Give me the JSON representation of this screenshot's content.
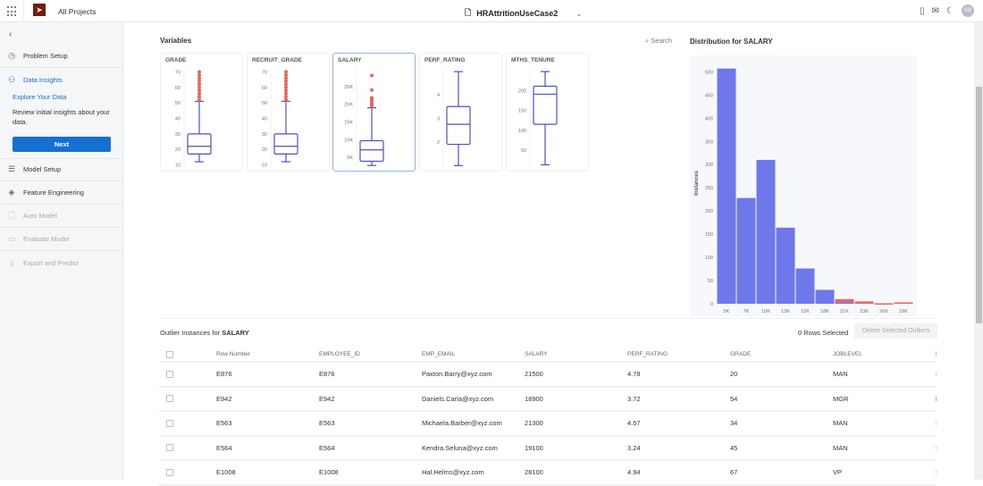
{
  "topbar": {
    "all_projects": "All Projects",
    "project_title": "HRAttritionUseCase2",
    "avatar": "SB"
  },
  "sidebar": {
    "items": [
      {
        "label": "Problem Setup",
        "icon": "clock-icon"
      },
      {
        "label": "Data Insights",
        "icon": "insights-icon"
      },
      {
        "label": "Model Setup",
        "icon": "sliders-icon"
      },
      {
        "label": "Feature Engineering",
        "icon": "layers-icon"
      },
      {
        "label": "Auto Model",
        "icon": "file-icon"
      },
      {
        "label": "Evaluate Model",
        "icon": "monitor-icon"
      },
      {
        "label": "Export and Predict",
        "icon": "download-icon"
      }
    ],
    "sub_title": "Explore Your Data",
    "sub_desc": "Review initial insights about your data.",
    "next": "Next"
  },
  "variables": {
    "title": "Variables",
    "search": "Search"
  },
  "colors": {
    "box": "#4a4fd0",
    "outlier": "#e8675a",
    "bar": "#6f78ea",
    "accent": "#1670d2"
  },
  "chart_data": [
    {
      "type": "box",
      "name": "GRADE",
      "ylim": [
        8,
        72
      ],
      "ticks": [
        10,
        20,
        30,
        40,
        50,
        60,
        70
      ],
      "tick_labels": [
        "10",
        "20",
        "30",
        "40",
        "50",
        "60",
        "70"
      ],
      "whisker_low": 12,
      "q1": 17,
      "median": 22,
      "q3": 30,
      "whisker_high": 51,
      "outliers": [
        52,
        54,
        56,
        58,
        60,
        62,
        64,
        66,
        68,
        70
      ]
    },
    {
      "type": "box",
      "name": "RECRUIT_GRADE",
      "ylim": [
        8,
        72
      ],
      "ticks": [
        10,
        20,
        30,
        40,
        50,
        60,
        70
      ],
      "tick_labels": [
        "10",
        "20",
        "30",
        "40",
        "50",
        "60",
        "70"
      ],
      "whisker_low": 12,
      "q1": 17,
      "median": 22,
      "q3": 30,
      "whisker_high": 51,
      "outliers": [
        52,
        54,
        56,
        58,
        60,
        62,
        64,
        66,
        68,
        70
      ]
    },
    {
      "type": "box",
      "name": "SALARY",
      "ylim": [
        2000,
        30000
      ],
      "ticks": [
        5000,
        10000,
        15000,
        20000,
        25000
      ],
      "tick_labels": [
        "5K",
        "10K",
        "15K",
        "20K",
        "25K"
      ],
      "whisker_low": 2700,
      "q1": 3900,
      "median": 7100,
      "q3": 9700,
      "whisker_high": 19000,
      "outliers": [
        19500,
        20000,
        20500,
        21000,
        21500,
        21800,
        24000,
        28100
      ]
    },
    {
      "type": "box",
      "name": "PERF_RATING",
      "ylim": [
        0.9,
        5.1
      ],
      "ticks": [
        2,
        3,
        4
      ],
      "tick_labels": [
        "2",
        "3",
        "4"
      ],
      "whisker_low": 1.0,
      "q1": 1.9,
      "median": 2.75,
      "q3": 3.5,
      "whisker_high": 4.98,
      "outliers": []
    },
    {
      "type": "box",
      "name": "MTHS_TENURE",
      "ylim": [
        5,
        255
      ],
      "ticks": [
        50,
        100,
        150,
        200
      ],
      "tick_labels": [
        "50",
        "100",
        "150",
        "200"
      ],
      "whisker_low": 13,
      "q1": 115,
      "median": 191,
      "q3": 211,
      "whisker_high": 248,
      "outliers": []
    },
    {
      "type": "bar",
      "title": "Distribution for SALARY",
      "ylabel": "Instances",
      "xlabel": "",
      "categories": [
        "5K",
        "7K",
        "10K",
        "13K",
        "15K",
        "18K",
        "21K",
        "23K",
        "26K",
        "29K"
      ],
      "series": [
        {
          "name": "normal",
          "values": [
            507,
            228,
            310,
            164,
            76,
            30,
            3,
            0,
            0,
            0
          ]
        },
        {
          "name": "outlier",
          "values": [
            0,
            0,
            0,
            0,
            0,
            0,
            7,
            5,
            1,
            3
          ]
        }
      ],
      "ylim": [
        0,
        520
      ],
      "yticks": [
        0,
        50,
        100,
        150,
        200,
        250,
        300,
        350,
        400,
        450,
        500
      ],
      "ytick_labels": [
        "0",
        "50",
        "100",
        "150",
        "200",
        "250",
        "300",
        "350",
        "400",
        "450",
        "500"
      ]
    }
  ],
  "outliers": {
    "title_prefix": "Outlier Instances for",
    "variable": "SALARY",
    "rows_selected": "0 Rows Selected",
    "delete_label": "Delete Selected Outliers",
    "columns": [
      "Row Number",
      "EMPLOYEE_ID",
      "EMP_EMAIL",
      "SALARY",
      "PERF_RATING",
      "GRADE",
      "JOBLEVEL",
      "D"
    ],
    "rows": [
      [
        "E876",
        "E876",
        "Paxton.Barry@xyz.com",
        "21500",
        "4.78",
        "20",
        "MAN",
        "S"
      ],
      [
        "E942",
        "E942",
        "Daniels.Carla@xyz.com",
        "18900",
        "3.72",
        "54",
        "MGR",
        "F"
      ],
      [
        "E563",
        "E563",
        "Michaela.Barber@xyz.com",
        "21300",
        "4.57",
        "34",
        "MAN",
        "S"
      ],
      [
        "E564",
        "E564",
        "Kendra.Seluna@xyz.com",
        "19100",
        "3.24",
        "45",
        "MAN",
        "S"
      ],
      [
        "E1008",
        "E1008",
        "Hal.Helms@xyz.com",
        "28100",
        "4.94",
        "67",
        "VP",
        "S"
      ]
    ]
  }
}
